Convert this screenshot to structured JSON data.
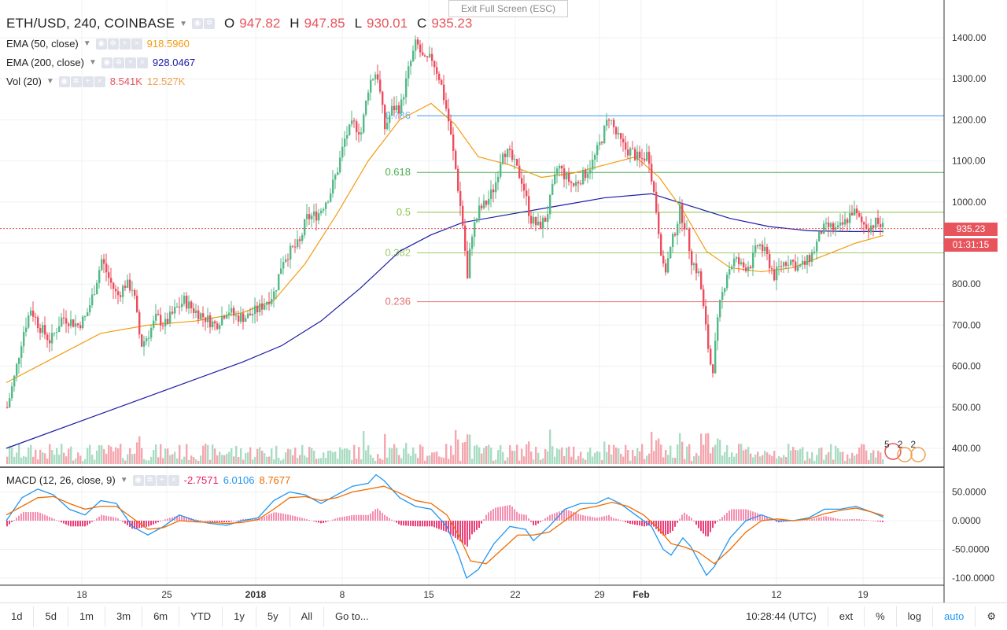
{
  "header": {
    "symbol": "ETH/USD, 240, COINBASE",
    "open_label": "O",
    "open": "947.82",
    "high_label": "H",
    "high": "947.85",
    "low_label": "L",
    "low": "930.01",
    "close_label": "C",
    "close": "935.23"
  },
  "indicators": [
    {
      "name": "EMA (50, close)",
      "value": "918.5960",
      "color": "#f39c12"
    },
    {
      "name": "EMA (200, close)",
      "value": "928.0467",
      "color": "#1a1aa6"
    },
    {
      "name": "Vol (20)",
      "value": "8.541K",
      "value2": "12.527K",
      "color": "#e8545b",
      "color2": "#f0a050"
    }
  ],
  "macd": {
    "name": "MACD (12, 26, close, 9)",
    "hist": "-2.7571",
    "macd": "6.0106",
    "signal": "8.7677",
    "colors": {
      "hist": "#e91e63",
      "macd": "#2196f3",
      "signal": "#ef6c00"
    }
  },
  "exit_fullscreen": "Exit Full Screen (ESC)",
  "last_price_tag": "935.23",
  "countdown_tag": "01:31:15",
  "event_counts": [
    "5",
    "2",
    "2"
  ],
  "toolbar": {
    "timeframes": [
      "1d",
      "5d",
      "1m",
      "3m",
      "6m",
      "YTD",
      "1y",
      "5y",
      "All"
    ],
    "goto": "Go to...",
    "clock": "10:28:44 (UTC)",
    "ext": "ext",
    "percent": "%",
    "log": "log",
    "auto": "auto"
  },
  "chart_data": [
    {
      "type": "candlestick",
      "title": "ETH/USD, 240, COINBASE",
      "ylim": [
        340,
        1460
      ],
      "y_ticks": [
        "1400.00",
        "1300.00",
        "1200.00",
        "1100.00",
        "1000.00",
        "900.00",
        "800.00",
        "700.00",
        "600.00",
        "500.00",
        "400.00"
      ],
      "x_ticks": [
        "18",
        "25",
        "2018",
        "8",
        "15",
        "22",
        "29",
        "Feb",
        "12",
        "19"
      ],
      "price_path": [
        [
          0,
          500
        ],
        [
          10,
          580
        ],
        [
          20,
          680
        ],
        [
          30,
          740
        ],
        [
          40,
          700
        ],
        [
          55,
          660
        ],
        [
          70,
          720
        ],
        [
          90,
          700
        ],
        [
          100,
          720
        ],
        [
          110,
          780
        ],
        [
          120,
          860
        ],
        [
          130,
          810
        ],
        [
          140,
          770
        ],
        [
          150,
          800
        ],
        [
          160,
          790
        ],
        [
          170,
          650
        ],
        [
          180,
          680
        ],
        [
          190,
          720
        ],
        [
          200,
          700
        ],
        [
          215,
          740
        ],
        [
          225,
          760
        ],
        [
          235,
          740
        ],
        [
          250,
          720
        ],
        [
          265,
          700
        ],
        [
          280,
          740
        ],
        [
          290,
          720
        ],
        [
          305,
          720
        ],
        [
          320,
          740
        ],
        [
          340,
          780
        ],
        [
          350,
          860
        ],
        [
          360,
          880
        ],
        [
          372,
          900
        ],
        [
          380,
          960
        ],
        [
          395,
          970
        ],
        [
          410,
          1020
        ],
        [
          420,
          1080
        ],
        [
          430,
          1160
        ],
        [
          440,
          1190
        ],
        [
          450,
          1170
        ],
        [
          460,
          1290
        ],
        [
          470,
          1320
        ],
        [
          480,
          1180
        ],
        [
          490,
          1230
        ],
        [
          500,
          1230
        ],
        [
          510,
          1320
        ],
        [
          520,
          1390
        ],
        [
          530,
          1340
        ],
        [
          540,
          1350
        ],
        [
          550,
          1300
        ],
        [
          560,
          1210
        ],
        [
          570,
          1080
        ],
        [
          580,
          930
        ],
        [
          585,
          810
        ],
        [
          590,
          920
        ],
        [
          600,
          980
        ],
        [
          610,
          1000
        ],
        [
          620,
          1040
        ],
        [
          630,
          1130
        ],
        [
          640,
          1110
        ],
        [
          655,
          1050
        ],
        [
          665,
          960
        ],
        [
          675,
          940
        ],
        [
          685,
          960
        ],
        [
          700,
          1090
        ],
        [
          710,
          1060
        ],
        [
          720,
          1040
        ],
        [
          735,
          1070
        ],
        [
          745,
          1100
        ],
        [
          755,
          1150
        ],
        [
          765,
          1210
        ],
        [
          775,
          1160
        ],
        [
          785,
          1130
        ],
        [
          795,
          1120
        ],
        [
          805,
          1100
        ],
        [
          815,
          1120
        ],
        [
          825,
          980
        ],
        [
          835,
          820
        ],
        [
          845,
          900
        ],
        [
          855,
          980
        ],
        [
          862,
          940
        ],
        [
          870,
          860
        ],
        [
          880,
          820
        ],
        [
          890,
          660
        ],
        [
          896,
          580
        ],
        [
          905,
          740
        ],
        [
          915,
          830
        ],
        [
          925,
          860
        ],
        [
          935,
          840
        ],
        [
          945,
          850
        ],
        [
          955,
          900
        ],
        [
          965,
          870
        ],
        [
          975,
          820
        ],
        [
          985,
          850
        ],
        [
          995,
          860
        ],
        [
          1005,
          840
        ],
        [
          1015,
          850
        ],
        [
          1025,
          880
        ],
        [
          1035,
          930
        ],
        [
          1045,
          940
        ],
        [
          1055,
          930
        ],
        [
          1065,
          950
        ],
        [
          1075,
          980
        ],
        [
          1085,
          950
        ],
        [
          1095,
          940
        ],
        [
          1105,
          950
        ],
        [
          1115,
          935
        ]
      ],
      "ema50": [
        [
          0,
          560
        ],
        [
          60,
          620
        ],
        [
          120,
          680
        ],
        [
          180,
          700
        ],
        [
          240,
          710
        ],
        [
          300,
          730
        ],
        [
          340,
          760
        ],
        [
          380,
          850
        ],
        [
          420,
          970
        ],
        [
          460,
          1100
        ],
        [
          500,
          1200
        ],
        [
          540,
          1240
        ],
        [
          570,
          1190
        ],
        [
          600,
          1110
        ],
        [
          640,
          1090
        ],
        [
          680,
          1060
        ],
        [
          720,
          1070
        ],
        [
          760,
          1090
        ],
        [
          800,
          1110
        ],
        [
          830,
          1060
        ],
        [
          860,
          980
        ],
        [
          890,
          880
        ],
        [
          920,
          840
        ],
        [
          960,
          830
        ],
        [
          1000,
          840
        ],
        [
          1040,
          870
        ],
        [
          1080,
          900
        ],
        [
          1115,
          918.6
        ]
      ],
      "ema200": [
        [
          0,
          400
        ],
        [
          100,
          470
        ],
        [
          200,
          540
        ],
        [
          300,
          610
        ],
        [
          350,
          650
        ],
        [
          400,
          710
        ],
        [
          450,
          790
        ],
        [
          500,
          880
        ],
        [
          540,
          920
        ],
        [
          580,
          950
        ],
        [
          640,
          970
        ],
        [
          700,
          990
        ],
        [
          760,
          1010
        ],
        [
          820,
          1020
        ],
        [
          870,
          990
        ],
        [
          920,
          960
        ],
        [
          970,
          940
        ],
        [
          1020,
          930
        ],
        [
          1070,
          928
        ],
        [
          1115,
          928
        ]
      ],
      "fibonacci": [
        {
          "level": "",
          "price": 1210,
          "color": "#2a6fdb"
        },
        {
          "level": "0.786",
          "price": 1210,
          "color": "#64b5f6"
        },
        {
          "level": "0.618",
          "price": 1072,
          "color": "#4caf50"
        },
        {
          "level": "0.5",
          "price": 975,
          "color": "#8bc34a"
        },
        {
          "level": "0.382",
          "price": 876,
          "color": "#9ccc65"
        },
        {
          "level": "0.236",
          "price": 757,
          "color": "#e57373"
        }
      ],
      "last_price": 935.23
    },
    {
      "type": "line",
      "title": "MACD (12, 26, close, 9)",
      "ylim": [
        -110,
        85
      ],
      "y_ticks": [
        "50.0000",
        "0.0000",
        "-50.0000",
        "-100.0000"
      ],
      "macd": [
        [
          0,
          0
        ],
        [
          20,
          40
        ],
        [
          40,
          55
        ],
        [
          60,
          45
        ],
        [
          80,
          20
        ],
        [
          100,
          10
        ],
        [
          120,
          35
        ],
        [
          140,
          30
        ],
        [
          160,
          -10
        ],
        [
          180,
          -25
        ],
        [
          200,
          -10
        ],
        [
          220,
          10
        ],
        [
          240,
          0
        ],
        [
          260,
          -5
        ],
        [
          280,
          -8
        ],
        [
          300,
          0
        ],
        [
          320,
          5
        ],
        [
          340,
          35
        ],
        [
          360,
          50
        ],
        [
          380,
          45
        ],
        [
          400,
          30
        ],
        [
          420,
          45
        ],
        [
          440,
          60
        ],
        [
          460,
          65
        ],
        [
          470,
          80
        ],
        [
          480,
          70
        ],
        [
          500,
          40
        ],
        [
          520,
          25
        ],
        [
          540,
          20
        ],
        [
          560,
          -10
        ],
        [
          575,
          -60
        ],
        [
          585,
          -100
        ],
        [
          600,
          -85
        ],
        [
          620,
          -40
        ],
        [
          640,
          -10
        ],
        [
          660,
          -15
        ],
        [
          670,
          -35
        ],
        [
          690,
          -10
        ],
        [
          710,
          20
        ],
        [
          730,
          30
        ],
        [
          750,
          30
        ],
        [
          765,
          40
        ],
        [
          780,
          30
        ],
        [
          800,
          10
        ],
        [
          820,
          -10
        ],
        [
          835,
          -50
        ],
        [
          845,
          -60
        ],
        [
          860,
          -30
        ],
        [
          870,
          -45
        ],
        [
          880,
          -70
        ],
        [
          890,
          -95
        ],
        [
          900,
          -80
        ],
        [
          920,
          -30
        ],
        [
          940,
          0
        ],
        [
          960,
          10
        ],
        [
          980,
          0
        ],
        [
          1000,
          0
        ],
        [
          1020,
          5
        ],
        [
          1040,
          20
        ],
        [
          1060,
          20
        ],
        [
          1080,
          25
        ],
        [
          1100,
          15
        ],
        [
          1115,
          6
        ]
      ],
      "signal": [
        [
          0,
          10
        ],
        [
          20,
          25
        ],
        [
          40,
          40
        ],
        [
          60,
          42
        ],
        [
          80,
          30
        ],
        [
          100,
          20
        ],
        [
          120,
          25
        ],
        [
          140,
          25
        ],
        [
          160,
          5
        ],
        [
          180,
          -15
        ],
        [
          200,
          -12
        ],
        [
          220,
          0
        ],
        [
          240,
          -2
        ],
        [
          260,
          -3
        ],
        [
          280,
          -5
        ],
        [
          300,
          -3
        ],
        [
          320,
          2
        ],
        [
          340,
          20
        ],
        [
          360,
          40
        ],
        [
          380,
          42
        ],
        [
          400,
          35
        ],
        [
          420,
          40
        ],
        [
          440,
          50
        ],
        [
          460,
          55
        ],
        [
          480,
          60
        ],
        [
          500,
          48
        ],
        [
          520,
          35
        ],
        [
          540,
          30
        ],
        [
          560,
          10
        ],
        [
          575,
          -25
        ],
        [
          590,
          -70
        ],
        [
          610,
          -75
        ],
        [
          630,
          -50
        ],
        [
          650,
          -25
        ],
        [
          670,
          -25
        ],
        [
          690,
          -20
        ],
        [
          710,
          0
        ],
        [
          730,
          20
        ],
        [
          750,
          25
        ],
        [
          770,
          32
        ],
        [
          790,
          25
        ],
        [
          810,
          10
        ],
        [
          830,
          -15
        ],
        [
          845,
          -40
        ],
        [
          860,
          -45
        ],
        [
          880,
          -55
        ],
        [
          900,
          -75
        ],
        [
          920,
          -50
        ],
        [
          940,
          -20
        ],
        [
          960,
          0
        ],
        [
          980,
          3
        ],
        [
          1000,
          0
        ],
        [
          1020,
          3
        ],
        [
          1040,
          12
        ],
        [
          1060,
          18
        ],
        [
          1080,
          22
        ],
        [
          1100,
          15
        ],
        [
          1115,
          8.8
        ]
      ]
    }
  ]
}
